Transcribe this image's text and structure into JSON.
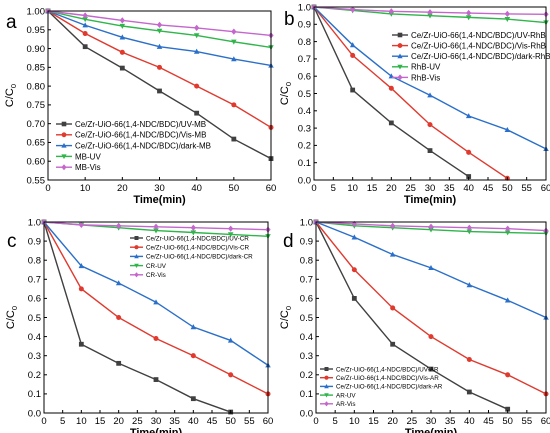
{
  "chart_data": [
    {
      "type": "line",
      "panel_label": "a",
      "xlabel": "Time(min)",
      "ylabel": "C/C",
      "ylabel_subscript": "0",
      "xlim": [
        0,
        60
      ],
      "ylim": [
        0.55,
        1.0
      ],
      "x_ticks": [
        "0",
        "10",
        "20",
        "30",
        "40",
        "50",
        "60"
      ],
      "y_ticks": [
        "0.55",
        "0.60",
        "0.65",
        "0.70",
        "0.75",
        "0.80",
        "0.85",
        "0.90",
        "0.95",
        "1.00"
      ],
      "legend_position": "bottom-left",
      "x": [
        0,
        10,
        20,
        30,
        40,
        50,
        60
      ],
      "series": [
        {
          "name": "Ce/Zr-UiO-66(1,4-NDC/BDC)/UV-MB",
          "color": "#404040",
          "marker": "square",
          "values": [
            1.0,
            0.905,
            0.848,
            0.787,
            0.728,
            0.659,
            0.607
          ]
        },
        {
          "name": "Ce/Zr-UiO-66(1,4-NDC/BDC)/Vis-MB",
          "color": "#e03a2f",
          "marker": "circle",
          "values": [
            1.0,
            0.94,
            0.89,
            0.85,
            0.8,
            0.75,
            0.69
          ]
        },
        {
          "name": "Ce/Zr-UiO-66(1,4-NDC/BDC)/dark-MB",
          "color": "#2a6fc9",
          "marker": "triangle-up",
          "values": [
            1.0,
            0.962,
            0.93,
            0.905,
            0.892,
            0.872,
            0.855
          ]
        },
        {
          "name": "MB-UV",
          "color": "#2fb54a",
          "marker": "triangle-down",
          "values": [
            1.0,
            0.978,
            0.96,
            0.947,
            0.935,
            0.918,
            0.903
          ]
        },
        {
          "name": "MB-Vis",
          "color": "#c466cc",
          "marker": "diamond",
          "values": [
            1.0,
            0.988,
            0.975,
            0.963,
            0.955,
            0.945,
            0.935
          ]
        }
      ]
    },
    {
      "type": "line",
      "panel_label": "b",
      "xlabel": "Time(min)",
      "ylabel": "C/C",
      "ylabel_subscript": "0",
      "xlim": [
        0,
        60
      ],
      "ylim": [
        0.0,
        1.0
      ],
      "x_ticks": [
        "0",
        "5",
        "10",
        "15",
        "20",
        "25",
        "30",
        "35",
        "40",
        "45",
        "50",
        "55",
        "60"
      ],
      "y_ticks": [
        "0.0",
        "0.1",
        "0.2",
        "0.3",
        "0.4",
        "0.5",
        "0.6",
        "0.7",
        "0.8",
        "0.9",
        "1.0"
      ],
      "legend_position": "top-right",
      "x": [
        0,
        10,
        20,
        30,
        40,
        50,
        60
      ],
      "series": [
        {
          "name": "Ce/Zr-UiO-66(1,4-NDC/BDC)/UV-RhB",
          "color": "#404040",
          "marker": "square",
          "values": [
            1.0,
            0.52,
            0.33,
            0.17,
            0.02,
            null,
            null
          ]
        },
        {
          "name": "Ce/Zr-UiO-66(1,4-NDC/BDC)/Vis-RhB",
          "color": "#e03a2f",
          "marker": "circle",
          "values": [
            1.0,
            0.72,
            0.53,
            0.32,
            0.16,
            0.01,
            null
          ]
        },
        {
          "name": "Ce/Zr-UiO-66(1,4-NDC/BDC)/dark-RhB",
          "color": "#2a6fc9",
          "marker": "triangle-up",
          "values": [
            1.0,
            0.78,
            0.6,
            0.49,
            0.37,
            0.29,
            0.18
          ]
        },
        {
          "name": "RhB-UV",
          "color": "#2fb54a",
          "marker": "triangle-down",
          "values": [
            1.0,
            0.98,
            0.96,
            0.95,
            0.94,
            0.93,
            0.91
          ]
        },
        {
          "name": "RhB-Vis",
          "color": "#c466cc",
          "marker": "diamond",
          "values": [
            1.0,
            0.985,
            0.975,
            0.97,
            0.965,
            0.96,
            0.958
          ]
        }
      ]
    },
    {
      "type": "line",
      "panel_label": "c",
      "xlabel": "Time(min)",
      "ylabel": "C/C",
      "ylabel_subscript": "0",
      "xlim": [
        0,
        60
      ],
      "ylim": [
        0.0,
        1.0
      ],
      "x_ticks": [
        "0",
        "5",
        "10",
        "15",
        "20",
        "25",
        "30",
        "35",
        "40",
        "45",
        "50",
        "55",
        "60"
      ],
      "y_ticks": [
        "0.0",
        "0.1",
        "0.2",
        "0.3",
        "0.4",
        "0.5",
        "0.6",
        "0.7",
        "0.8",
        "0.9",
        "1.0"
      ],
      "legend_position": "top-right",
      "x": [
        0,
        10,
        20,
        30,
        40,
        50,
        60
      ],
      "series": [
        {
          "name": "Ce/Zr-UiO-66(1,4-NDC/BDC)/UV-CR",
          "color": "#404040",
          "marker": "square",
          "values": [
            1.0,
            0.36,
            0.26,
            0.175,
            0.075,
            0.005,
            null
          ]
        },
        {
          "name": "Ce/Zr-UiO-66(1,4-NDC/BDC)/Vis-CR",
          "color": "#e03a2f",
          "marker": "circle",
          "values": [
            1.0,
            0.65,
            0.5,
            0.39,
            0.3,
            0.2,
            0.1
          ]
        },
        {
          "name": "Ce/Zr-UiO-66(1,4-NDC/BDC)/dark-CR",
          "color": "#2a6fc9",
          "marker": "triangle-up",
          "values": [
            1.0,
            0.77,
            0.68,
            0.58,
            0.45,
            0.38,
            0.25
          ]
        },
        {
          "name": "CR-UV",
          "color": "#2fb54a",
          "marker": "triangle-down",
          "values": [
            1.0,
            0.985,
            0.97,
            0.955,
            0.945,
            0.935,
            0.925
          ]
        },
        {
          "name": "CR-Vis",
          "color": "#c466cc",
          "marker": "diamond",
          "values": [
            1.0,
            0.985,
            0.98,
            0.975,
            0.97,
            0.965,
            0.96
          ]
        }
      ]
    },
    {
      "type": "line",
      "panel_label": "d",
      "xlabel": "Time(min)",
      "ylabel": "C/C",
      "ylabel_subscript": "0",
      "xlim": [
        0,
        60
      ],
      "ylim": [
        0.0,
        1.0
      ],
      "x_ticks": [
        "0",
        "5",
        "10",
        "15",
        "20",
        "25",
        "30",
        "35",
        "40",
        "45",
        "50",
        "55",
        "60"
      ],
      "y_ticks": [
        "0.0",
        "0.1",
        "0.2",
        "0.3",
        "0.4",
        "0.5",
        "0.6",
        "0.7",
        "0.8",
        "0.9",
        "1.0"
      ],
      "legend_position": "bottom-left",
      "x": [
        0,
        10,
        20,
        30,
        40,
        50,
        60
      ],
      "series": [
        {
          "name": "Ce/Zr-UiO-66(1,4-NDC/BDC)/UV-AR",
          "color": "#404040",
          "marker": "square",
          "values": [
            1.0,
            0.6,
            0.36,
            0.23,
            0.11,
            0.02,
            null
          ]
        },
        {
          "name": "Ce/Zr-UiO-66(1,4-NDC/BDC)/Vis-AR",
          "color": "#e03a2f",
          "marker": "circle",
          "values": [
            1.0,
            0.75,
            0.55,
            0.4,
            0.28,
            0.2,
            0.1
          ]
        },
        {
          "name": "Ce/Zr-UiO-66(1,4-NDC/BDC)/dark-AR",
          "color": "#2a6fc9",
          "marker": "triangle-up",
          "values": [
            1.0,
            0.92,
            0.83,
            0.76,
            0.67,
            0.59,
            0.5
          ]
        },
        {
          "name": "AR-UV",
          "color": "#2fb54a",
          "marker": "triangle-down",
          "values": [
            1.0,
            0.98,
            0.97,
            0.96,
            0.95,
            0.945,
            0.94
          ]
        },
        {
          "name": "AR-Vis",
          "color": "#c466cc",
          "marker": "diamond",
          "values": [
            1.0,
            0.99,
            0.98,
            0.975,
            0.97,
            0.965,
            0.955
          ]
        }
      ]
    }
  ]
}
